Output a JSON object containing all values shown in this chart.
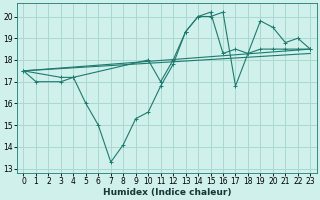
{
  "xlabel": "Humidex (Indice chaleur)",
  "background_color": "#cff0eb",
  "grid_color": "#aad8d0",
  "line_color": "#1e7a6e",
  "xlim": [
    -0.5,
    23.5
  ],
  "ylim": [
    12.8,
    20.6
  ],
  "yticks": [
    13,
    14,
    15,
    16,
    17,
    18,
    19,
    20
  ],
  "xticks": [
    0,
    1,
    2,
    3,
    4,
    5,
    6,
    7,
    8,
    9,
    10,
    11,
    12,
    13,
    14,
    15,
    16,
    17,
    18,
    19,
    20,
    21,
    22,
    23
  ],
  "line1": {
    "x": [
      0,
      1,
      3,
      4,
      5,
      6,
      7,
      8,
      9,
      10,
      11,
      12,
      13,
      14,
      15,
      16,
      17,
      18,
      19,
      20,
      21,
      22,
      23
    ],
    "y": [
      17.5,
      17.0,
      17.0,
      17.2,
      16.0,
      15.0,
      13.3,
      14.1,
      15.3,
      15.6,
      16.8,
      17.8,
      19.3,
      20.0,
      20.0,
      20.2,
      16.8,
      18.3,
      18.5,
      18.5,
      18.5,
      18.5,
      18.5
    ]
  },
  "line2": {
    "x": [
      0,
      3,
      4,
      10,
      11,
      12,
      13,
      14,
      15,
      16,
      17,
      18,
      19,
      20,
      21,
      22,
      23
    ],
    "y": [
      17.5,
      17.2,
      17.2,
      18.0,
      17.0,
      18.0,
      19.3,
      20.0,
      20.2,
      18.3,
      18.5,
      18.3,
      19.8,
      19.5,
      18.8,
      19.0,
      18.5
    ]
  },
  "line3": {
    "x": [
      0,
      23
    ],
    "y": [
      17.5,
      18.5
    ]
  },
  "line4": {
    "x": [
      0,
      23
    ],
    "y": [
      17.5,
      18.3
    ]
  }
}
